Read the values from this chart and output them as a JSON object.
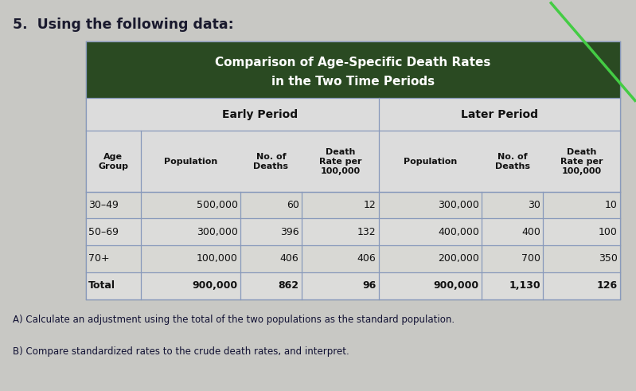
{
  "title_line1": "Comparison of Age-Specific Death Rates",
  "title_line2": "in the Two Time Periods",
  "header_bg_color": "#2a4a22",
  "header_text_color": "#ffffff",
  "table_bg_color": "#dcdcdc",
  "page_bg_color": "#c8c8c4",
  "question_text": "5.  Using the following data:",
  "sub_a": "A) Calculate an adjustment using the total of the two populations as the standard population.",
  "sub_b": "B) Compare standardized rates to the crude death rates, and interpret.",
  "rows": [
    [
      "30–49",
      "500,000",
      "60",
      "12",
      "300,000",
      "30",
      "10"
    ],
    [
      "50–69",
      "300,000",
      "396",
      "132",
      "400,000",
      "400",
      "100"
    ],
    [
      "70+",
      "100,000",
      "406",
      "406",
      "200,000",
      "700",
      "350"
    ],
    [
      "Total",
      "900,000",
      "862",
      "96",
      "900,000",
      "1,130",
      "126"
    ]
  ],
  "figsize": [
    7.99,
    4.91
  ],
  "dpi": 100,
  "green_line": [
    [
      0.865,
      1.0
    ],
    [
      0.995,
      0.74
    ]
  ]
}
